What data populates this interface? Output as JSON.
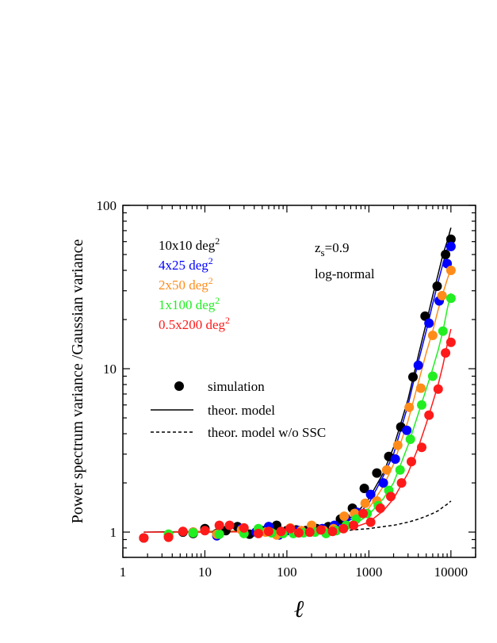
{
  "chart_data": {
    "type": "scatter",
    "xscale": "log",
    "yscale": "log",
    "xlim": [
      1,
      20000
    ],
    "ylim": [
      0.7,
      100
    ],
    "xticks": [
      "1",
      "10",
      "100",
      "1000",
      "10000"
    ],
    "yticks": [
      "1",
      "10",
      "100"
    ],
    "ylabel": "Power spectrum variance /Gaussian variance",
    "xlabel": "ℓ",
    "annotations": {
      "redshift_main": "z",
      "redshift_sub": "s",
      "redshift_val": "=0.9",
      "model": "log-normal"
    },
    "legend": {
      "simulation": "simulation",
      "theor_model": "theor. model",
      "theor_model_no_ssc": "theor. model w/o SSC"
    },
    "series": [
      {
        "name": "10x10 deg",
        "name_sup": "2",
        "color": "#000000",
        "points": [
          [
            1.8,
            0.92
          ],
          [
            3.6,
            0.94
          ],
          [
            5.4,
            1.0
          ],
          [
            7.2,
            0.98
          ],
          [
            10,
            1.05
          ],
          [
            14,
            0.98
          ],
          [
            18,
            1.02
          ],
          [
            25,
            1.08
          ],
          [
            35,
            0.97
          ],
          [
            50,
            1.02
          ],
          [
            60,
            1.08
          ],
          [
            75,
            1.1
          ],
          [
            100,
            1.02
          ],
          [
            130,
            1.03
          ],
          [
            170,
            1.02
          ],
          [
            230,
            1.05
          ],
          [
            320,
            1.08
          ],
          [
            450,
            1.2
          ],
          [
            630,
            1.4
          ],
          [
            880,
            1.85
          ],
          [
            1250,
            2.3
          ],
          [
            1750,
            2.9
          ],
          [
            2450,
            4.4
          ],
          [
            3450,
            8.9
          ],
          [
            4850,
            21
          ],
          [
            6800,
            32
          ],
          [
            8600,
            50
          ],
          [
            10000,
            62
          ]
        ],
        "model": [
          [
            1.8,
            1.0
          ],
          [
            10,
            1.01
          ],
          [
            100,
            1.02
          ],
          [
            300,
            1.05
          ],
          [
            500,
            1.15
          ],
          [
            700,
            1.3
          ],
          [
            1000,
            1.6
          ],
          [
            1500,
            2.3
          ],
          [
            2000,
            3.3
          ],
          [
            3000,
            6.5
          ],
          [
            4000,
            12
          ],
          [
            5000,
            19
          ],
          [
            6000,
            28
          ],
          [
            7000,
            38
          ],
          [
            8000,
            50
          ],
          [
            9000,
            60
          ],
          [
            10000,
            73
          ]
        ]
      },
      {
        "name": "4x25 deg",
        "name_sup": "2",
        "color": "#0000ff",
        "points": [
          [
            3.6,
            0.96
          ],
          [
            7.2,
            1.0
          ],
          [
            14,
            0.95
          ],
          [
            28,
            1.05
          ],
          [
            42,
            1.0
          ],
          [
            60,
            1.08
          ],
          [
            80,
            0.96
          ],
          [
            110,
            1.02
          ],
          [
            140,
            1.02
          ],
          [
            190,
            1.0
          ],
          [
            270,
            1.05
          ],
          [
            380,
            1.1
          ],
          [
            520,
            1.22
          ],
          [
            720,
            1.32
          ],
          [
            1050,
            1.7
          ],
          [
            1500,
            2.0
          ],
          [
            2100,
            2.8
          ],
          [
            2900,
            4.2
          ],
          [
            4000,
            10.5
          ],
          [
            5400,
            19
          ],
          [
            7200,
            26
          ],
          [
            9000,
            44
          ],
          [
            10000,
            56
          ]
        ],
        "model": [
          [
            3.6,
            1.0
          ],
          [
            10,
            1.01
          ],
          [
            100,
            1.02
          ],
          [
            300,
            1.05
          ],
          [
            500,
            1.13
          ],
          [
            700,
            1.25
          ],
          [
            1000,
            1.5
          ],
          [
            1500,
            2.2
          ],
          [
            2000,
            3.0
          ],
          [
            3000,
            6.0
          ],
          [
            4000,
            11
          ],
          [
            5000,
            17
          ],
          [
            6000,
            25
          ],
          [
            7000,
            34
          ],
          [
            8000,
            44
          ],
          [
            9000,
            54
          ],
          [
            10000,
            63
          ]
        ]
      },
      {
        "name": "2x50 deg",
        "name_sup": "2",
        "color": "#ff8c1a",
        "points": [
          [
            3.6,
            0.95
          ],
          [
            7.2,
            1.0
          ],
          [
            14,
            0.97
          ],
          [
            28,
            1.03
          ],
          [
            55,
            1.0
          ],
          [
            75,
            0.96
          ],
          [
            110,
            1.06
          ],
          [
            150,
            1.02
          ],
          [
            200,
            1.1
          ],
          [
            280,
            1.02
          ],
          [
            370,
            1.05
          ],
          [
            500,
            1.25
          ],
          [
            670,
            1.3
          ],
          [
            900,
            1.5
          ],
          [
            1250,
            1.55
          ],
          [
            1650,
            2.4
          ],
          [
            2250,
            3.4
          ],
          [
            3100,
            5.8
          ],
          [
            4300,
            7.6
          ],
          [
            6000,
            16
          ],
          [
            7800,
            28
          ],
          [
            10000,
            40
          ]
        ],
        "model": [
          [
            3.6,
            1.0
          ],
          [
            10,
            1.01
          ],
          [
            100,
            1.02
          ],
          [
            300,
            1.04
          ],
          [
            500,
            1.1
          ],
          [
            700,
            1.2
          ],
          [
            1000,
            1.4
          ],
          [
            1500,
            1.9
          ],
          [
            2000,
            2.6
          ],
          [
            3000,
            4.8
          ],
          [
            4000,
            8.2
          ],
          [
            5000,
            12.5
          ],
          [
            6000,
            17
          ],
          [
            7000,
            23
          ],
          [
            8000,
            29
          ],
          [
            9000,
            35
          ],
          [
            10000,
            41
          ]
        ]
      },
      {
        "name": "1x100 deg",
        "name_sup": "2",
        "color": "#22ee22",
        "points": [
          [
            3.6,
            0.97
          ],
          [
            7.2,
            0.99
          ],
          [
            15,
            0.97
          ],
          [
            30,
            0.98
          ],
          [
            45,
            1.05
          ],
          [
            65,
            0.99
          ],
          [
            90,
            0.98
          ],
          [
            120,
            0.98
          ],
          [
            160,
            0.99
          ],
          [
            220,
            1.0
          ],
          [
            300,
            0.98
          ],
          [
            400,
            1.02
          ],
          [
            530,
            1.1
          ],
          [
            700,
            1.2
          ],
          [
            950,
            1.3
          ],
          [
            1300,
            1.45
          ],
          [
            1750,
            1.8
          ],
          [
            2400,
            2.4
          ],
          [
            3200,
            3.7
          ],
          [
            4400,
            6.0
          ],
          [
            6000,
            9.0
          ],
          [
            8000,
            17
          ],
          [
            10000,
            27
          ]
        ],
        "model": [
          [
            3.6,
            1.0
          ],
          [
            10,
            1.0
          ],
          [
            100,
            1.01
          ],
          [
            300,
            1.03
          ],
          [
            500,
            1.07
          ],
          [
            700,
            1.13
          ],
          [
            1000,
            1.28
          ],
          [
            1500,
            1.6
          ],
          [
            2000,
            2.0
          ],
          [
            3000,
            3.4
          ],
          [
            4000,
            5.3
          ],
          [
            5000,
            7.5
          ],
          [
            6000,
            10
          ],
          [
            7000,
            13
          ],
          [
            8000,
            17
          ],
          [
            9000,
            23
          ],
          [
            10000,
            29
          ]
        ]
      },
      {
        "name": "0.5x200 deg",
        "name_sup": "2",
        "color": "#ff1a1a",
        "points": [
          [
            1.8,
            0.92
          ],
          [
            3.6,
            0.93
          ],
          [
            5.4,
            1.01
          ],
          [
            10,
            1.02
          ],
          [
            15,
            1.1
          ],
          [
            20,
            1.1
          ],
          [
            30,
            1.06
          ],
          [
            45,
            0.98
          ],
          [
            60,
            1.01
          ],
          [
            85,
            1.01
          ],
          [
            110,
            1.05
          ],
          [
            140,
            0.99
          ],
          [
            190,
            1.0
          ],
          [
            260,
            1.03
          ],
          [
            360,
            1.01
          ],
          [
            490,
            1.05
          ],
          [
            650,
            1.1
          ],
          [
            850,
            1.3
          ],
          [
            1050,
            1.15
          ],
          [
            1380,
            1.4
          ],
          [
            1850,
            1.65
          ],
          [
            2500,
            2.0
          ],
          [
            3300,
            2.7
          ],
          [
            4400,
            3.3
          ],
          [
            5400,
            5.2
          ],
          [
            7000,
            7.5
          ],
          [
            8600,
            12.5
          ],
          [
            10000,
            14.5
          ]
        ],
        "model": [
          [
            1.8,
            1.0
          ],
          [
            10,
            1.0
          ],
          [
            100,
            1.01
          ],
          [
            300,
            1.02
          ],
          [
            500,
            1.04
          ],
          [
            700,
            1.08
          ],
          [
            1000,
            1.15
          ],
          [
            1500,
            1.35
          ],
          [
            2000,
            1.6
          ],
          [
            3000,
            2.3
          ],
          [
            4000,
            3.3
          ],
          [
            5000,
            4.6
          ],
          [
            6000,
            6.2
          ],
          [
            7000,
            8.0
          ],
          [
            8000,
            10.5
          ],
          [
            9000,
            14
          ],
          [
            10000,
            17.5
          ]
        ]
      }
    ],
    "no_ssc_model": [
      [
        500,
        1.02
      ],
      [
        1000,
        1.05
      ],
      [
        1500,
        1.08
      ],
      [
        2000,
        1.1
      ],
      [
        3000,
        1.15
      ],
      [
        4000,
        1.2
      ],
      [
        5000,
        1.25
      ],
      [
        6000,
        1.3
      ],
      [
        7000,
        1.35
      ],
      [
        8000,
        1.42
      ],
      [
        9000,
        1.48
      ],
      [
        10000,
        1.55
      ]
    ]
  }
}
